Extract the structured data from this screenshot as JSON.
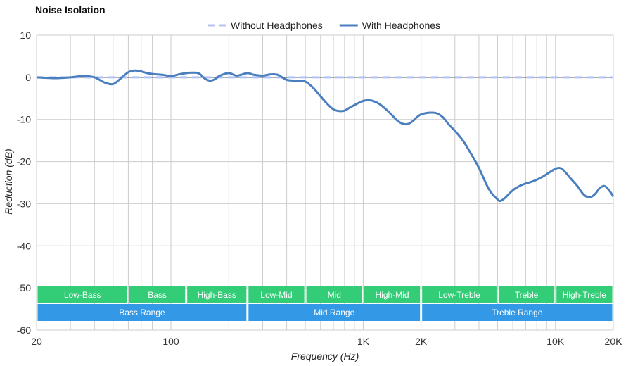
{
  "chart_data": {
    "type": "line",
    "title": "Noise Isolation",
    "xlabel": "Frequency (Hz)",
    "ylabel": "Reduction (dB)",
    "x_scale": "log",
    "xlim": [
      20,
      20000
    ],
    "ylim": [
      -60,
      10
    ],
    "y_ticks": [
      10,
      0,
      -10,
      -20,
      -30,
      -40,
      -50,
      -60
    ],
    "x_ticks": [
      {
        "value": 20,
        "label": "20"
      },
      {
        "value": 100,
        "label": "100"
      },
      {
        "value": 1000,
        "label": "1K"
      },
      {
        "value": 2000,
        "label": "2K"
      },
      {
        "value": 10000,
        "label": "10K"
      },
      {
        "value": 20000,
        "label": "20K"
      }
    ],
    "x_gridlines": [
      20,
      30,
      40,
      50,
      60,
      70,
      80,
      90,
      100,
      200,
      300,
      400,
      500,
      600,
      700,
      800,
      900,
      1000,
      2000,
      3000,
      4000,
      5000,
      6000,
      7000,
      8000,
      9000,
      10000,
      20000
    ],
    "grid": true,
    "legend_position": "top-center",
    "series": [
      {
        "name": "Without Headphones",
        "color": "#b3c3f7",
        "style": "dashed",
        "x": [
          20,
          20000
        ],
        "y": [
          0,
          0
        ]
      },
      {
        "name": "With Headphones",
        "color": "#4a7fbf",
        "style": "solid",
        "x": [
          20,
          25,
          30,
          35,
          40,
          45,
          50,
          55,
          60,
          65,
          70,
          75,
          80,
          90,
          100,
          110,
          120,
          130,
          140,
          150,
          160,
          170,
          180,
          200,
          220,
          250,
          270,
          300,
          330,
          360,
          400,
          450,
          500,
          550,
          600,
          650,
          700,
          750,
          800,
          850,
          900,
          1000,
          1100,
          1200,
          1300,
          1400,
          1500,
          1600,
          1700,
          1800,
          1900,
          2000,
          2200,
          2400,
          2600,
          2800,
          3000,
          3300,
          3600,
          4000,
          4500,
          5000,
          5200,
          5500,
          6000,
          6500,
          7000,
          7500,
          8000,
          8500,
          9000,
          9500,
          10000,
          10500,
          11000,
          12000,
          13000,
          14000,
          15000,
          16000,
          17000,
          18000,
          19000,
          20000
        ],
        "y": [
          0,
          -0.2,
          0,
          0.3,
          0,
          -1.2,
          -1.6,
          -0.2,
          1.2,
          1.6,
          1.4,
          1,
          0.8,
          0.6,
          0.3,
          0.7,
          1,
          1.1,
          0.9,
          -0.3,
          -0.8,
          -0.4,
          0.4,
          1,
          0.4,
          1,
          0.6,
          0.4,
          0.7,
          0.6,
          -0.6,
          -0.8,
          -1,
          -2.5,
          -4.5,
          -6.3,
          -7.6,
          -8,
          -7.9,
          -7.2,
          -6.6,
          -5.6,
          -5.5,
          -6.2,
          -7.4,
          -8.8,
          -10.2,
          -11,
          -11.1,
          -10.5,
          -9.5,
          -8.8,
          -8.4,
          -8.5,
          -9.5,
          -11.3,
          -12.7,
          -15,
          -17.8,
          -21.5,
          -26.5,
          -29,
          -29.3,
          -28.5,
          -26.8,
          -25.8,
          -25.2,
          -24.8,
          -24.3,
          -23.7,
          -23,
          -22.3,
          -21.7,
          -21.5,
          -22,
          -24,
          -25.8,
          -27.8,
          -28.5,
          -27.8,
          -26.3,
          -25.8,
          -26.8,
          -28.3
        ]
      }
    ],
    "bands_row1": [
      {
        "label": "Low-Bass",
        "from": 20,
        "to": 60,
        "color": "#33cc77"
      },
      {
        "label": "Bass",
        "from": 60,
        "to": 120,
        "color": "#33cc77"
      },
      {
        "label": "High-Bass",
        "from": 120,
        "to": 250,
        "color": "#33cc77"
      },
      {
        "label": "Low-Mid",
        "from": 250,
        "to": 500,
        "color": "#33cc77"
      },
      {
        "label": "Mid",
        "from": 500,
        "to": 1000,
        "color": "#33cc77"
      },
      {
        "label": "High-Mid",
        "from": 1000,
        "to": 2000,
        "color": "#33cc77"
      },
      {
        "label": "Low-Treble",
        "from": 2000,
        "to": 5000,
        "color": "#33cc77"
      },
      {
        "label": "Treble",
        "from": 5000,
        "to": 10000,
        "color": "#33cc77"
      },
      {
        "label": "High-Treble",
        "from": 10000,
        "to": 20000,
        "color": "#33cc77"
      }
    ],
    "bands_row2": [
      {
        "label": "Bass Range",
        "from": 20,
        "to": 250,
        "color": "#3399e6"
      },
      {
        "label": "Mid Range",
        "from": 250,
        "to": 2000,
        "color": "#3399e6"
      },
      {
        "label": "Treble Range",
        "from": 2000,
        "to": 20000,
        "color": "#3399e6"
      }
    ]
  }
}
